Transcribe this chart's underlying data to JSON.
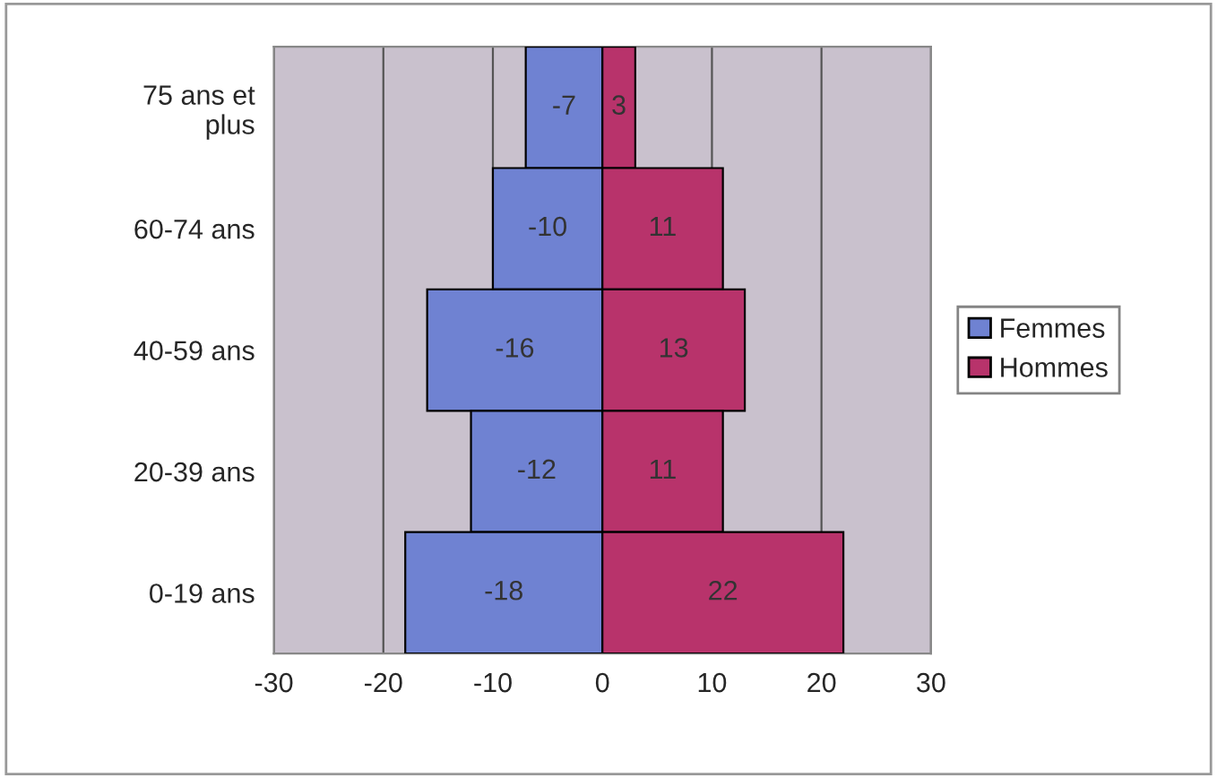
{
  "chart_data": {
    "type": "bar",
    "orientation": "horizontal",
    "categories": [
      "75 ans et\nplus",
      "60-74 ans",
      "40-59 ans",
      "20-39 ans",
      "0-19 ans"
    ],
    "series": [
      {
        "name": "Femmes",
        "color": "#6f82d2",
        "values": [
          -7,
          -10,
          -16,
          -12,
          -18
        ]
      },
      {
        "name": "Hommes",
        "color": "#b8336b",
        "values": [
          3,
          11,
          13,
          11,
          22
        ]
      }
    ],
    "xlim": [
      -30,
      30
    ],
    "xticks": [
      -30,
      -20,
      -10,
      0,
      10,
      20,
      30
    ],
    "grid": "x",
    "stacked": true,
    "legend": "right",
    "data_labels": true
  }
}
